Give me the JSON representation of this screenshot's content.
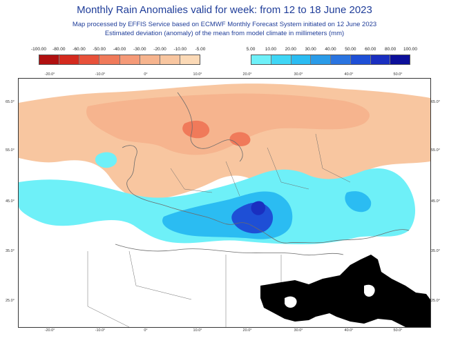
{
  "header": {
    "title": "Monthly Rain Anomalies valid for week: from 12 to 18 June 2023",
    "line1": "Map processed by EFFIS Service based on ECMWF Monthly Forecast System initiated on 12 June 2023",
    "line2": "Estimated deviation (anomaly) of the mean from model climate in millimeters (mm)"
  },
  "legend_dry": {
    "labels": [
      "-100.00",
      "-80.00",
      "-60.00",
      "-50.00",
      "-40.00",
      "-30.00",
      "-20.00",
      "-10.00",
      "-5.00"
    ],
    "colors": [
      "#b01010",
      "#d42a1e",
      "#e8513a",
      "#f07a5a",
      "#f59a78",
      "#f6b48e",
      "#f8c6a0",
      "#fbd9b6"
    ]
  },
  "legend_wet": {
    "labels": [
      "5.00",
      "10.00",
      "20.00",
      "30.00",
      "40.00",
      "50.00",
      "60.00",
      "80.00",
      "100.00"
    ],
    "colors": [
      "#6ef0f8",
      "#3fd6f5",
      "#2bbcf2",
      "#2a9be8",
      "#2a74e0",
      "#1e4fd6",
      "#1a2fc0",
      "#0c0f9a"
    ]
  },
  "map": {
    "lon_ticks": [
      "-20.0°",
      "-10.0°",
      "0°",
      "10.0°",
      "20.0°",
      "30.0°",
      "40.0°",
      "50.0°"
    ],
    "lat_ticks": [
      "65.0°",
      "55.0°",
      "45.0°",
      "35.0°",
      "25.0°"
    ],
    "colors": {
      "dry_light": "#f8c6a0",
      "dry_medium": "#f6b48e",
      "dry_strong": "#f07a5a",
      "wet_light": "#6ef0f8",
      "wet_medium": "#2bbcf2",
      "wet_strong": "#1e4fd6",
      "wet_max": "#1a2fc0",
      "no_data": "#000000",
      "borders": "#6b6b6b"
    }
  }
}
